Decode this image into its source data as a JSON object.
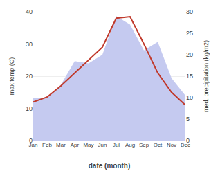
{
  "chart_data": {
    "type": "line",
    "categories": [
      "Jan",
      "Feb",
      "Mar",
      "Apr",
      "May",
      "Jun",
      "Jul",
      "Aug",
      "Sep",
      "Oct",
      "Nov",
      "Dec"
    ],
    "xlabel": "date (month)",
    "ylabel": "max temp (C)",
    "y2label": "med. precipitation (kg/m2)",
    "series": [
      {
        "type": "area",
        "axis": "y2",
        "color": "#c5caf0",
        "values": [
          10.0,
          10.0,
          13.0,
          18.5,
          18.0,
          20.0,
          29.0,
          27.0,
          21.0,
          23.0,
          14.5,
          10.5
        ]
      },
      {
        "type": "line",
        "color": "#c0392b",
        "values": [
          12.0,
          13.5,
          17.0,
          21.0,
          25.0,
          29.0,
          38.0,
          38.5,
          30.0,
          21.0,
          15.0,
          11.0
        ]
      }
    ],
    "ylim": [
      0,
      40
    ],
    "yticks": [
      0,
      10,
      20,
      30,
      40
    ],
    "y2lim": [
      0,
      30
    ],
    "y2ticks": [
      0,
      5,
      10,
      15,
      20,
      25,
      30
    ],
    "grid": true
  }
}
